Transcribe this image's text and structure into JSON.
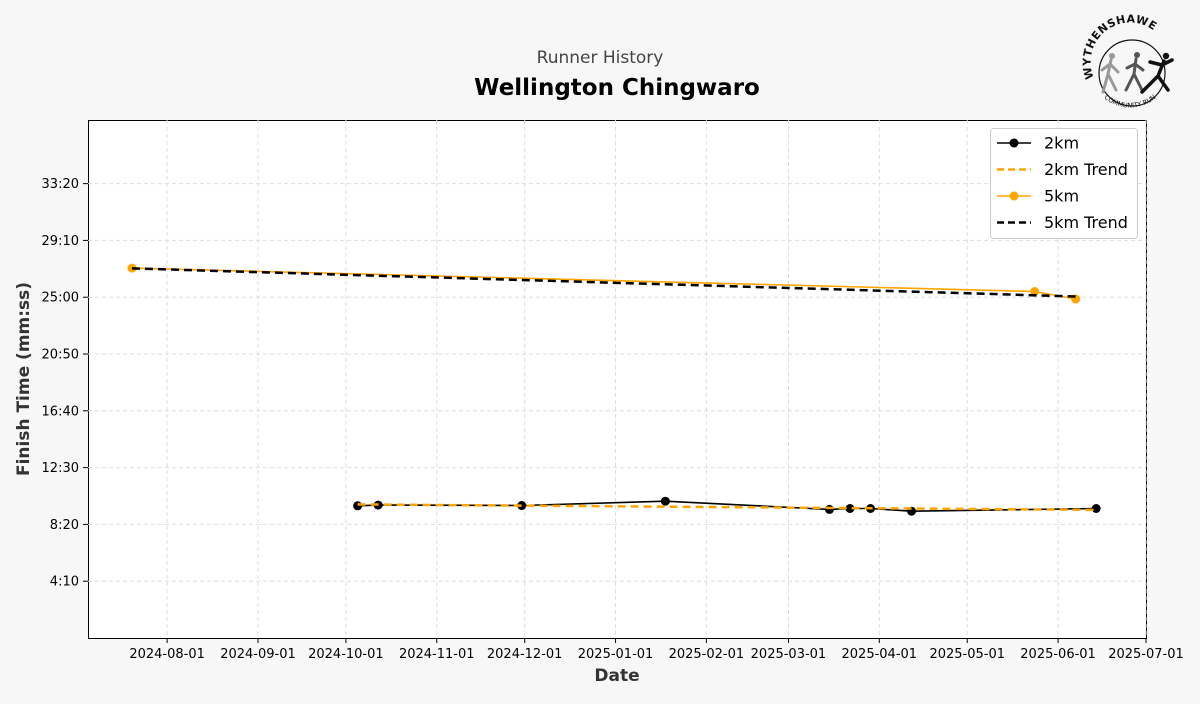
{
  "header": {
    "subtitle": "Runner History",
    "title": "Wellington Chingwaro"
  },
  "logo": {
    "name": "WYTHENSHAWE",
    "tagline": "COMMUNITY RUN"
  },
  "chart_data": {
    "type": "line",
    "title": "Wellington Chingwaro",
    "subtitle": "Runner History",
    "xlabel": "Date",
    "ylabel": "Finish Time (mm:ss)",
    "x_type": "date",
    "xlim": [
      "2024-07-05",
      "2025-07-01"
    ],
    "ylim": [
      0,
      2280
    ],
    "x_ticks": [
      "2024-08-01",
      "2024-09-01",
      "2024-10-01",
      "2024-11-01",
      "2024-12-01",
      "2025-01-01",
      "2025-02-01",
      "2025-03-01",
      "2025-04-01",
      "2025-05-01",
      "2025-06-01",
      "2025-07-01"
    ],
    "y_ticks": [
      250,
      500,
      750,
      1000,
      1250,
      1500,
      1750,
      2000
    ],
    "y_tick_labels": [
      "4:10",
      "8:20",
      "12:30",
      "16:40",
      "20:50",
      "25:00",
      "29:10",
      "33:20"
    ],
    "grid": true,
    "legend_position": "top-right",
    "series": [
      {
        "name": "2km",
        "color": "#000000",
        "style": "solid",
        "marker": true,
        "x": [
          "2024-10-05",
          "2024-10-12",
          "2024-11-30",
          "2025-01-18",
          "2025-03-15",
          "2025-03-22",
          "2025-03-29",
          "2025-04-12",
          "2025-06-14"
        ],
        "y": [
          582,
          585,
          583,
          602,
          566,
          570,
          570,
          558,
          570
        ]
      },
      {
        "name": "2km Trend",
        "color": "#FFA500",
        "style": "dashed",
        "marker": false,
        "x": [
          "2024-10-05",
          "2025-06-14"
        ],
        "y": [
          588,
          564
        ]
      },
      {
        "name": "5km",
        "color": "#FFA500",
        "style": "solid",
        "marker": true,
        "x": [
          "2024-07-20",
          "2025-05-24",
          "2025-06-07"
        ],
        "y": [
          1628,
          1525,
          1492
        ]
      },
      {
        "name": "5km Trend",
        "color": "#000000",
        "style": "dashed",
        "marker": false,
        "x": [
          "2024-07-20",
          "2025-06-07"
        ],
        "y": [
          1627,
          1503
        ]
      }
    ]
  }
}
